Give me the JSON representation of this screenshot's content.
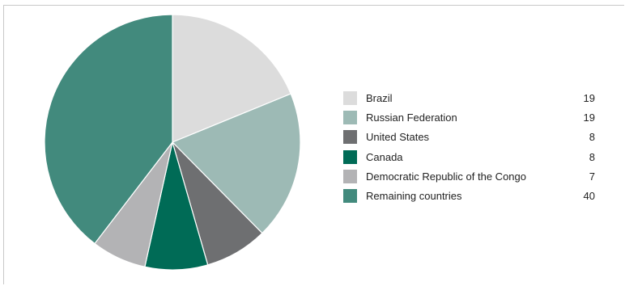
{
  "chart_data": {
    "type": "pie",
    "title": "",
    "slices": [
      {
        "label": "Brazil",
        "value": 19,
        "color": "#dcdcdc"
      },
      {
        "label": "Russian Federation",
        "value": 19,
        "color": "#9dbab5"
      },
      {
        "label": "United States",
        "value": 8,
        "color": "#6e6f71"
      },
      {
        "label": "Canada",
        "value": 8,
        "color": "#006b56"
      },
      {
        "label": "Democratic Republic of the Congo",
        "value": 7,
        "color": "#b3b3b5"
      },
      {
        "label": "Remaining countries",
        "value": 40,
        "color": "#428a7d"
      }
    ],
    "start_angle_deg": 0,
    "direction": "clockwise",
    "legend": "right"
  }
}
